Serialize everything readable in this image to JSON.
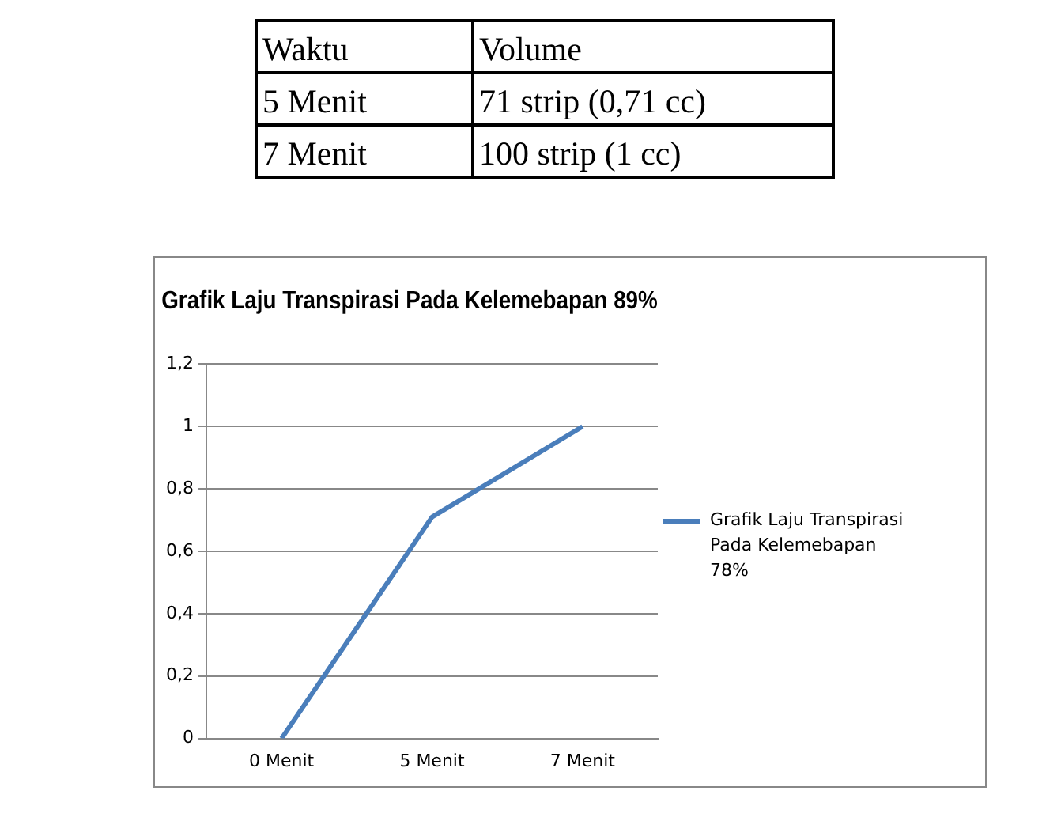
{
  "chart_data": {
    "type": "line",
    "title": "Grafik Laju Transpirasi Pada Kelemebapan 89%",
    "categories": [
      "0 Menit",
      "5 Menit",
      "7 Menit"
    ],
    "series": [
      {
        "name": "Grafik Laju Transpirasi Pada Kelemebapan 78%",
        "color": "#4a7ebb",
        "values": [
          0,
          0.71,
          1
        ]
      }
    ],
    "ylim": [
      0,
      1.2
    ],
    "yticks": [
      0,
      {
        "value": 0.2,
        "label": "0,2"
      },
      {
        "value": 0.4,
        "label": "0,4"
      },
      {
        "value": 0.6,
        "label": "0,6"
      },
      {
        "value": 0.8,
        "label": "0,8"
      },
      1,
      {
        "value": 1.2,
        "label": "1,2"
      }
    ],
    "grid": "y",
    "legend": "right",
    "marker": "none",
    "annotations": [
      "Waktu",
      "Volume",
      "5 Menit",
      "71 strip (0,71 cc)",
      "7 Menit",
      "100 strip (1 cc)"
    ]
  }
}
